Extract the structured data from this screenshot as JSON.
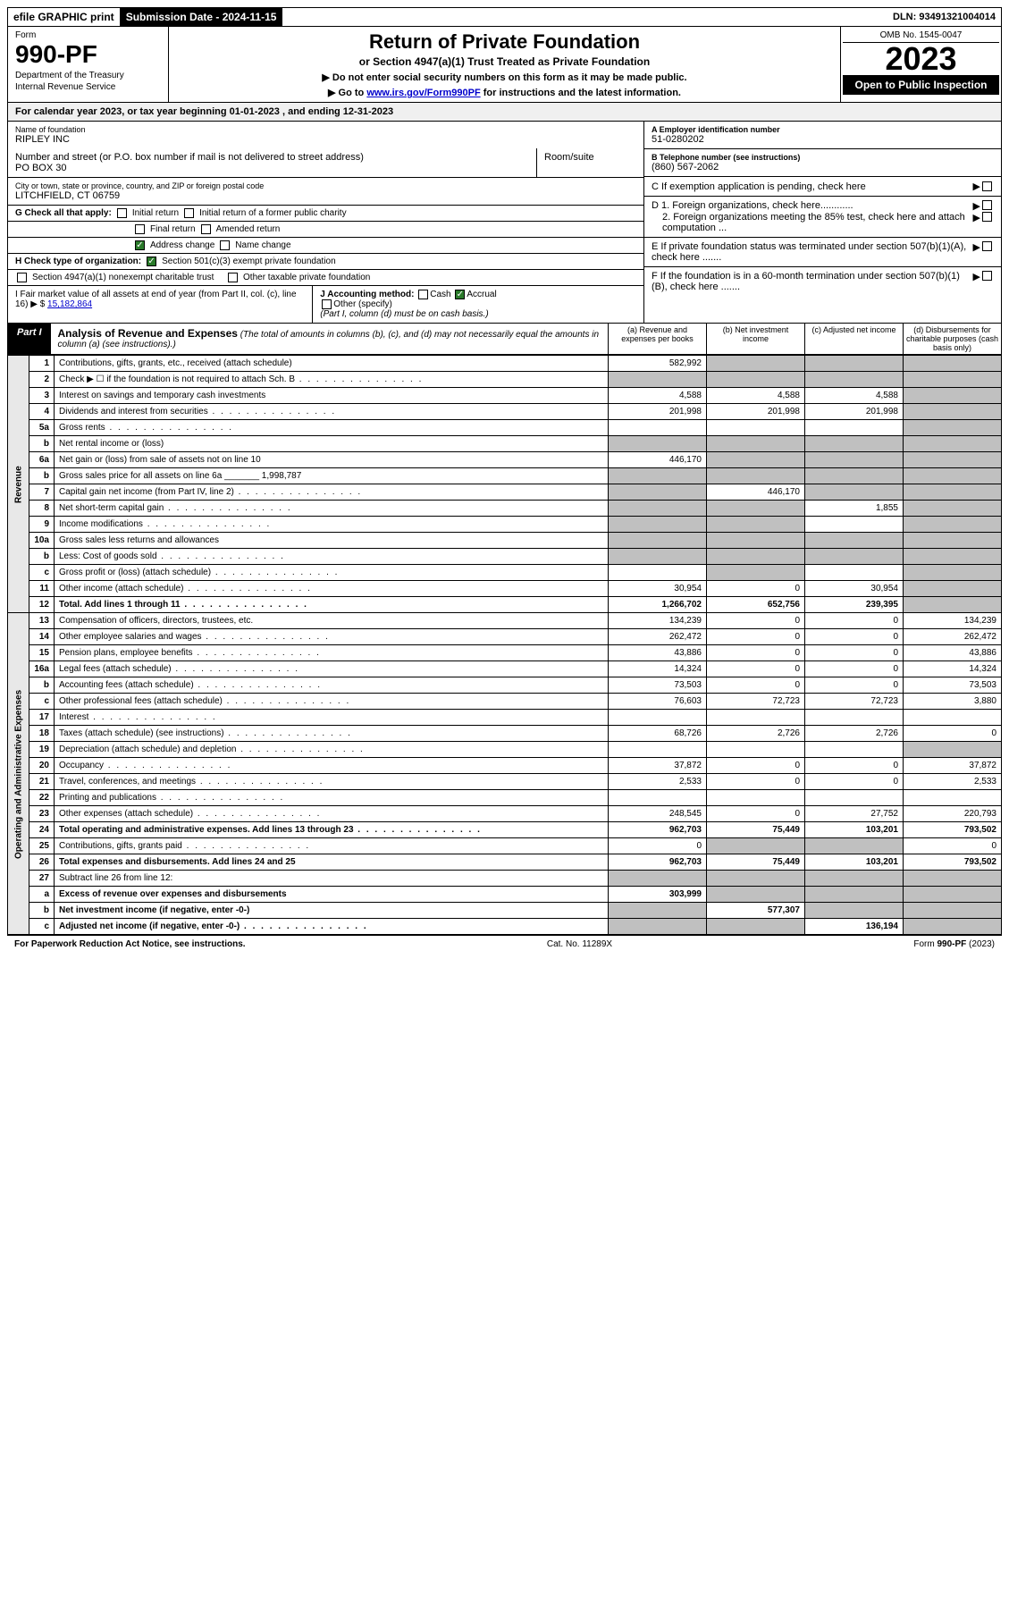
{
  "top": {
    "efile": "efile GRAPHIC print",
    "submission": "Submission Date - 2024-11-15",
    "dln": "DLN: 93491321004014"
  },
  "header": {
    "form_label": "Form",
    "form_number": "990-PF",
    "dept1": "Department of the Treasury",
    "dept2": "Internal Revenue Service",
    "title": "Return of Private Foundation",
    "subtitle": "or Section 4947(a)(1) Trust Treated as Private Foundation",
    "note1": "▶ Do not enter social security numbers on this form as it may be made public.",
    "note2_pre": "▶ Go to ",
    "note2_link": "www.irs.gov/Form990PF",
    "note2_post": " for instructions and the latest information.",
    "omb": "OMB No. 1545-0047",
    "year": "2023",
    "inspection": "Open to Public Inspection"
  },
  "cal_year": "For calendar year 2023, or tax year beginning 01-01-2023                           , and ending 12-31-2023",
  "info": {
    "name_label": "Name of foundation",
    "name": "RIPLEY INC",
    "addr_label": "Number and street (or P.O. box number if mail is not delivered to street address)",
    "addr": "PO BOX 30",
    "room_label": "Room/suite",
    "city_label": "City or town, state or province, country, and ZIP or foreign postal code",
    "city": "LITCHFIELD, CT  06759",
    "ein_label": "A Employer identification number",
    "ein": "51-0280202",
    "tel_label": "B Telephone number (see instructions)",
    "tel": "(860) 567-2062",
    "c": "C If exemption application is pending, check here",
    "d1": "D 1. Foreign organizations, check here............",
    "d2": "2. Foreign organizations meeting the 85% test, check here and attach computation ...",
    "e": "E  If private foundation status was terminated under section 507(b)(1)(A), check here .......",
    "f": "F  If the foundation is in a 60-month termination under section 507(b)(1)(B), check here ......."
  },
  "g": {
    "label": "G Check all that apply:",
    "items": [
      "Initial return",
      "Initial return of a former public charity",
      "Final return",
      "Amended return",
      "Address change",
      "Name change"
    ]
  },
  "h": {
    "label": "H Check type of organization:",
    "opt1": "Section 501(c)(3) exempt private foundation",
    "opt2": "Section 4947(a)(1) nonexempt charitable trust",
    "opt3": "Other taxable private foundation"
  },
  "i": {
    "label": "I Fair market value of all assets at end of year (from Part II, col. (c), line 16) ▶ $",
    "value": "15,182,864"
  },
  "j": {
    "label": "J Accounting method:",
    "cash": "Cash",
    "accrual": "Accrual",
    "other": "Other (specify)",
    "note": "(Part I, column (d) must be on cash basis.)"
  },
  "part1": {
    "label": "Part I",
    "title": "Analysis of Revenue and Expenses",
    "desc": "(The total of amounts in columns (b), (c), and (d) may not necessarily equal the amounts in column (a) (see instructions).)",
    "col_a": "(a)  Revenue and expenses per books",
    "col_b": "(b)  Net investment income",
    "col_c": "(c)  Adjusted net income",
    "col_d": "(d)  Disbursements for charitable purposes (cash basis only)"
  },
  "revenue_label": "Revenue",
  "expenses_label": "Operating and Administrative Expenses",
  "rows": [
    {
      "n": "1",
      "d": "Contributions, gifts, grants, etc., received (attach schedule)",
      "a": "582,992",
      "shade": [
        "b",
        "c",
        "d"
      ]
    },
    {
      "n": "2",
      "d": "Check ▶ ☐ if the foundation is not required to attach Sch. B",
      "dots": true,
      "shade": [
        "a",
        "b",
        "c",
        "d"
      ]
    },
    {
      "n": "3",
      "d": "Interest on savings and temporary cash investments",
      "a": "4,588",
      "b": "4,588",
      "c": "4,588"
    },
    {
      "n": "4",
      "d": "Dividends and interest from securities",
      "dots": true,
      "a": "201,998",
      "b": "201,998",
      "c": "201,998"
    },
    {
      "n": "5a",
      "d": "Gross rents",
      "dots": true
    },
    {
      "n": "b",
      "d": "Net rental income or (loss)",
      "shade": [
        "a",
        "b",
        "c",
        "d"
      ]
    },
    {
      "n": "6a",
      "d": "Net gain or (loss) from sale of assets not on line 10",
      "a": "446,170",
      "shade": [
        "b",
        "c"
      ]
    },
    {
      "n": "b",
      "d": "Gross sales price for all assets on line 6a _______ 1,998,787",
      "shade": [
        "a",
        "b",
        "c",
        "d"
      ]
    },
    {
      "n": "7",
      "d": "Capital gain net income (from Part IV, line 2)",
      "dots": true,
      "b": "446,170",
      "shade": [
        "a",
        "c"
      ]
    },
    {
      "n": "8",
      "d": "Net short-term capital gain",
      "dots": true,
      "c": "1,855",
      "shade": [
        "a",
        "b"
      ]
    },
    {
      "n": "9",
      "d": "Income modifications",
      "dots": true,
      "shade": [
        "a",
        "b"
      ]
    },
    {
      "n": "10a",
      "d": "Gross sales less returns and allowances",
      "shade": [
        "a",
        "b",
        "c",
        "d"
      ]
    },
    {
      "n": "b",
      "d": "Less: Cost of goods sold",
      "dots": true,
      "shade": [
        "a",
        "b",
        "c",
        "d"
      ]
    },
    {
      "n": "c",
      "d": "Gross profit or (loss) (attach schedule)",
      "dots": true,
      "shade": [
        "b"
      ]
    },
    {
      "n": "11",
      "d": "Other income (attach schedule)",
      "dots": true,
      "a": "30,954",
      "b": "0",
      "c": "30,954"
    },
    {
      "n": "12",
      "d": "Total. Add lines 1 through 11",
      "dots": true,
      "a": "1,266,702",
      "b": "652,756",
      "c": "239,395",
      "bold": true
    }
  ],
  "exp_rows": [
    {
      "n": "13",
      "d": "Compensation of officers, directors, trustees, etc.",
      "a": "134,239",
      "b": "0",
      "c": "0",
      "db": "134,239"
    },
    {
      "n": "14",
      "d": "Other employee salaries and wages",
      "dots": true,
      "a": "262,472",
      "b": "0",
      "c": "0",
      "db": "262,472"
    },
    {
      "n": "15",
      "d": "Pension plans, employee benefits",
      "dots": true,
      "a": "43,886",
      "b": "0",
      "c": "0",
      "db": "43,886"
    },
    {
      "n": "16a",
      "d": "Legal fees (attach schedule)",
      "dots": true,
      "a": "14,324",
      "b": "0",
      "c": "0",
      "db": "14,324"
    },
    {
      "n": "b",
      "d": "Accounting fees (attach schedule)",
      "dots": true,
      "a": "73,503",
      "b": "0",
      "c": "0",
      "db": "73,503"
    },
    {
      "n": "c",
      "d": "Other professional fees (attach schedule)",
      "dots": true,
      "a": "76,603",
      "b": "72,723",
      "c": "72,723",
      "db": "3,880"
    },
    {
      "n": "17",
      "d": "Interest",
      "dots": true
    },
    {
      "n": "18",
      "d": "Taxes (attach schedule) (see instructions)",
      "dots": true,
      "a": "68,726",
      "b": "2,726",
      "c": "2,726",
      "db": "0"
    },
    {
      "n": "19",
      "d": "Depreciation (attach schedule) and depletion",
      "dots": true,
      "shade": [
        "d"
      ]
    },
    {
      "n": "20",
      "d": "Occupancy",
      "dots": true,
      "a": "37,872",
      "b": "0",
      "c": "0",
      "db": "37,872"
    },
    {
      "n": "21",
      "d": "Travel, conferences, and meetings",
      "dots": true,
      "a": "2,533",
      "b": "0",
      "c": "0",
      "db": "2,533"
    },
    {
      "n": "22",
      "d": "Printing and publications",
      "dots": true
    },
    {
      "n": "23",
      "d": "Other expenses (attach schedule)",
      "dots": true,
      "a": "248,545",
      "b": "0",
      "c": "27,752",
      "db": "220,793"
    },
    {
      "n": "24",
      "d": "Total operating and administrative expenses. Add lines 13 through 23",
      "dots": true,
      "a": "962,703",
      "b": "75,449",
      "c": "103,201",
      "db": "793,502",
      "bold": true
    },
    {
      "n": "25",
      "d": "Contributions, gifts, grants paid",
      "dots": true,
      "a": "0",
      "db": "0",
      "shade": [
        "b",
        "c"
      ]
    },
    {
      "n": "26",
      "d": "Total expenses and disbursements. Add lines 24 and 25",
      "a": "962,703",
      "b": "75,449",
      "c": "103,201",
      "db": "793,502",
      "bold": true
    }
  ],
  "final_rows": [
    {
      "n": "27",
      "d": "Subtract line 26 from line 12:",
      "shade": [
        "a",
        "b",
        "c",
        "d"
      ]
    },
    {
      "n": "a",
      "d": "Excess of revenue over expenses and disbursements",
      "a": "303,999",
      "shade": [
        "b",
        "c",
        "d"
      ],
      "bold": true
    },
    {
      "n": "b",
      "d": "Net investment income (if negative, enter -0-)",
      "b": "577,307",
      "shade": [
        "a",
        "c",
        "d"
      ],
      "bold": true
    },
    {
      "n": "c",
      "d": "Adjusted net income (if negative, enter -0-)",
      "dots": true,
      "c": "136,194",
      "shade": [
        "a",
        "b",
        "d"
      ],
      "bold": true
    }
  ],
  "footer": {
    "left": "For Paperwork Reduction Act Notice, see instructions.",
    "center": "Cat. No. 11289X",
    "right": "Form 990-PF (2023)"
  }
}
